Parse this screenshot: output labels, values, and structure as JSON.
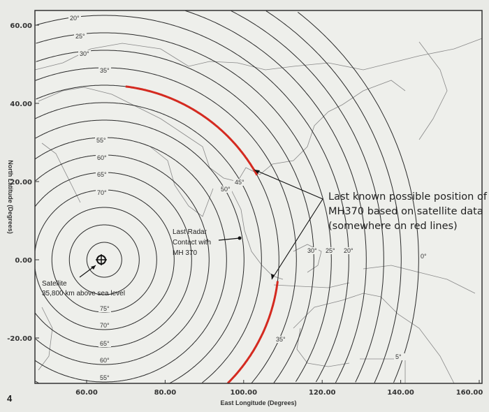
{
  "map": {
    "x_axis": {
      "title": "East Longitude (Degrees)",
      "ticks": [
        "60.00",
        "80.00",
        "100.00",
        "120.00",
        "140.00",
        "160.00"
      ],
      "tick_values": [
        60,
        80,
        100,
        120,
        140,
        160
      ]
    },
    "y_axis": {
      "title": "North Latitude (Degrees)",
      "ticks": [
        "60.00",
        "40.00",
        "20.00",
        "0.00",
        "-20.00"
      ],
      "tick_values": [
        60,
        40,
        20,
        0,
        -20
      ]
    },
    "elevation_labels": [
      "20°",
      "25°",
      "30°",
      "35°",
      "55°",
      "60°",
      "65°",
      "70°",
      "50°",
      "45°",
      "75°",
      "70°",
      "65°",
      "60°",
      "55°",
      "35°",
      "30°",
      "25°",
      "20°",
      "0°",
      "5°"
    ],
    "satellite": {
      "label": "Satellite",
      "sublabel": "35,800 km above sea level",
      "longitude": 64.5,
      "latitude": 0
    },
    "radar": {
      "line1": "Last Radar",
      "line2": "Contact with",
      "line3": "MH 370"
    },
    "callout": {
      "line1": "Last known possible position of",
      "line2": "MH370 based on satellite data",
      "line3": "(somewhere on red lines)"
    },
    "red_arc_elevation_deg": 40,
    "colors": {
      "arc": "#d42a20",
      "lines": "#2a2a2a",
      "coast": "#777777",
      "paper": "#e9eae6"
    }
  },
  "page_number": "4"
}
